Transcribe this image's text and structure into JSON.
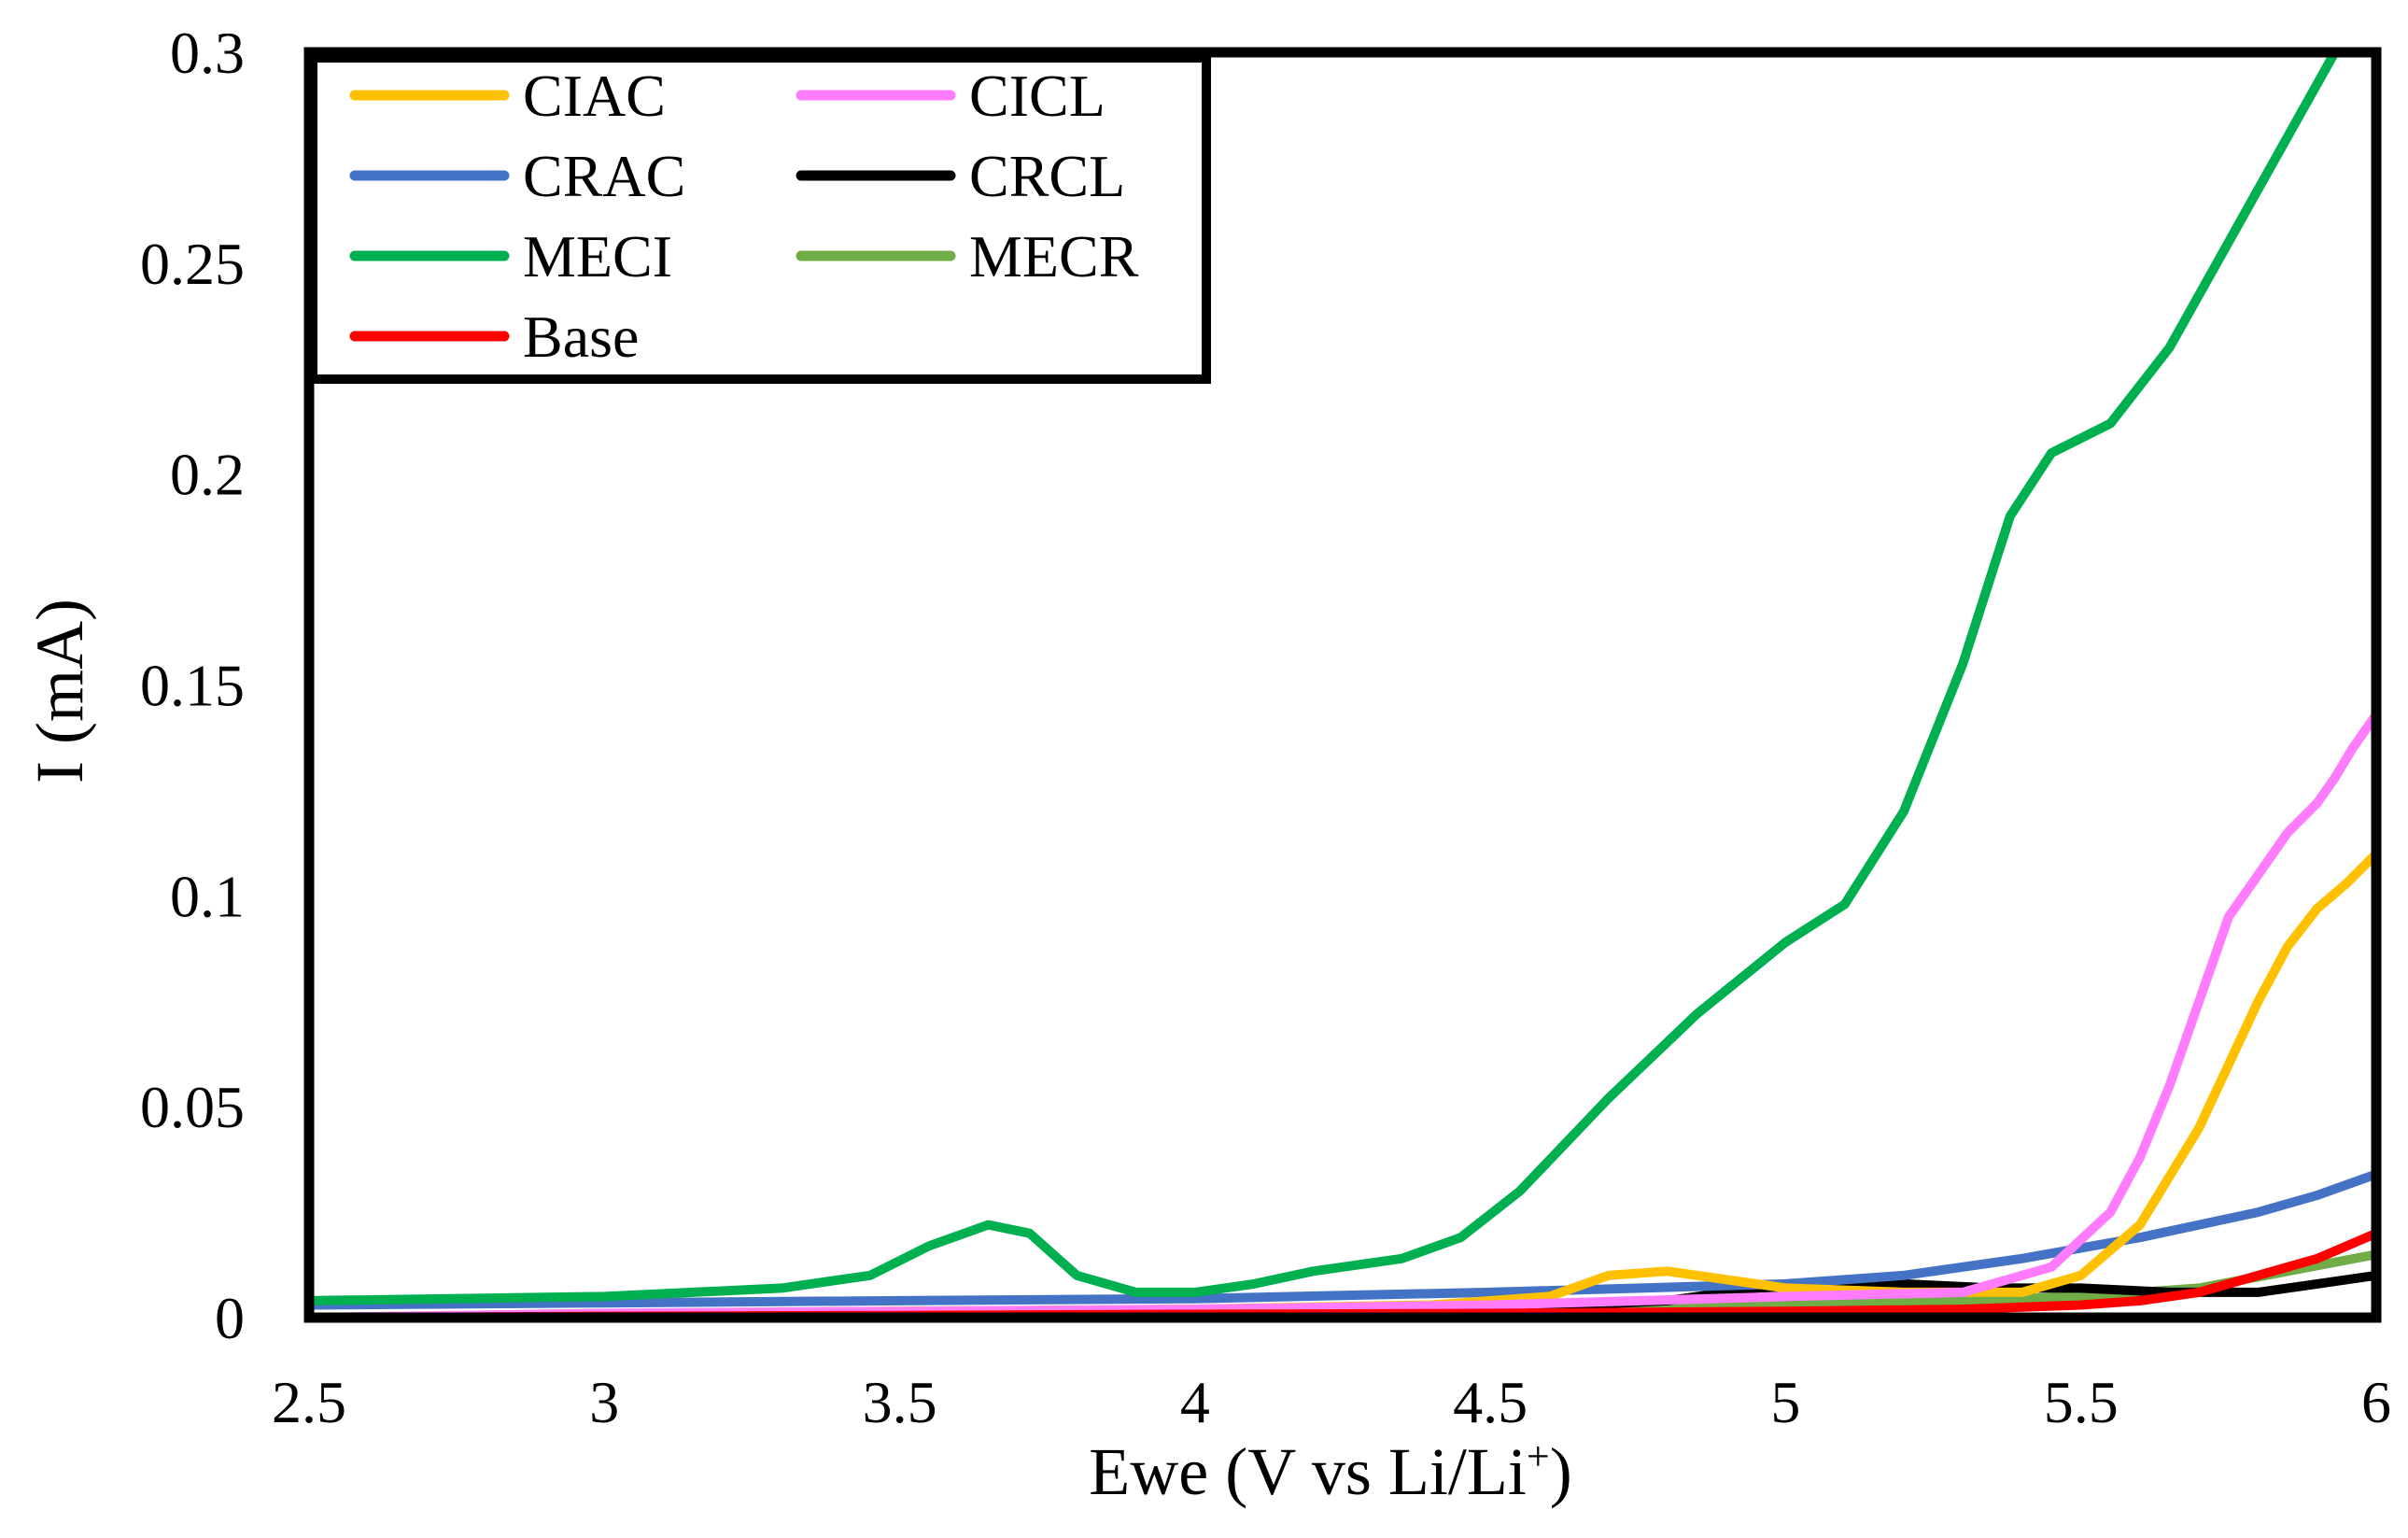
{
  "chart_data": {
    "type": "line",
    "title": "",
    "xlabel": "Ewe (V vs Li/Li",
    "xlabel_sup": "+",
    "xlabel_close": ")",
    "ylabel": "I (mA)",
    "xlim": [
      2.5,
      6
    ],
    "ylim": [
      0,
      0.3
    ],
    "x_ticks": [
      2.5,
      3,
      3.5,
      4,
      4.5,
      5,
      5.5,
      6
    ],
    "x_tick_labels": [
      "2.5",
      "3",
      "3.5",
      "4",
      "4.5",
      "5",
      "5.5",
      "6"
    ],
    "y_ticks": [
      0,
      0.05,
      0.1,
      0.15,
      0.2,
      0.25,
      0.3
    ],
    "y_tick_labels": [
      "0",
      "0.05",
      "0.1",
      "0.15",
      "0.2",
      "0.25",
      "0.3"
    ],
    "grid": false,
    "legend_position": "top-left",
    "series": [
      {
        "name": "CIAC",
        "color": "#FFC000",
        "x": [
          2.5,
          3.0,
          3.5,
          4.0,
          4.4,
          4.6,
          4.7,
          4.8,
          4.9,
          5.0,
          5.2,
          5.4,
          5.5,
          5.6,
          5.7,
          5.8,
          5.85,
          5.9,
          5.95,
          6.0
        ],
        "y": [
          0.0,
          0.001,
          0.0015,
          0.002,
          0.003,
          0.005,
          0.01,
          0.011,
          0.009,
          0.007,
          0.006,
          0.006,
          0.01,
          0.022,
          0.045,
          0.075,
          0.088,
          0.097,
          0.103,
          0.11
        ]
      },
      {
        "name": "CICL",
        "color": "#FF7CFF",
        "x": [
          2.5,
          3.0,
          3.5,
          4.0,
          4.5,
          5.0,
          5.3,
          5.45,
          5.55,
          5.6,
          5.65,
          5.7,
          5.75,
          5.8,
          5.85,
          5.9,
          5.93,
          5.96,
          6.0
        ],
        "y": [
          0.0,
          0.001,
          0.0015,
          0.002,
          0.003,
          0.005,
          0.006,
          0.012,
          0.025,
          0.038,
          0.055,
          0.075,
          0.095,
          0.105,
          0.115,
          0.122,
          0.128,
          0.135,
          0.143
        ]
      },
      {
        "name": "CRAC",
        "color": "#4472C4",
        "x": [
          2.5,
          3.0,
          3.5,
          4.0,
          4.5,
          5.0,
          5.2,
          5.4,
          5.6,
          5.8,
          5.9,
          6.0
        ],
        "y": [
          0.003,
          0.0035,
          0.004,
          0.0045,
          0.006,
          0.008,
          0.01,
          0.014,
          0.019,
          0.025,
          0.029,
          0.034
        ]
      },
      {
        "name": "CRCL",
        "color": "#000000",
        "x": [
          2.5,
          3.0,
          3.5,
          4.0,
          4.5,
          4.8,
          4.95,
          5.1,
          5.2,
          5.35,
          5.5,
          5.65,
          5.8,
          5.9,
          6.0
        ],
        "y": [
          0.0,
          0.0005,
          0.001,
          0.0015,
          0.002,
          0.004,
          0.007,
          0.008,
          0.008,
          0.007,
          0.007,
          0.006,
          0.006,
          0.008,
          0.01
        ]
      },
      {
        "name": "MECI",
        "color": "#00B050",
        "x": [
          2.5,
          3.0,
          3.3,
          3.45,
          3.55,
          3.65,
          3.72,
          3.8,
          3.9,
          4.0,
          4.1,
          4.2,
          4.35,
          4.45,
          4.55,
          4.7,
          4.85,
          5.0,
          5.1,
          5.2,
          5.3,
          5.38,
          5.45,
          5.55,
          5.65,
          5.75,
          5.85,
          5.93
        ],
        "y": [
          0.004,
          0.005,
          0.007,
          0.01,
          0.017,
          0.022,
          0.02,
          0.01,
          0.006,
          0.006,
          0.008,
          0.011,
          0.014,
          0.019,
          0.03,
          0.052,
          0.072,
          0.089,
          0.098,
          0.12,
          0.155,
          0.19,
          0.205,
          0.212,
          0.23,
          0.255,
          0.28,
          0.3
        ]
      },
      {
        "name": "MECR",
        "color": "#70AD47",
        "x": [
          2.5,
          3.0,
          3.5,
          4.0,
          4.5,
          5.0,
          5.3,
          5.5,
          5.7,
          5.85,
          6.0
        ],
        "y": [
          0.0,
          0.0005,
          0.001,
          0.0015,
          0.002,
          0.003,
          0.004,
          0.005,
          0.007,
          0.011,
          0.015
        ]
      },
      {
        "name": "Base",
        "color": "#FF0000",
        "x": [
          2.63,
          3.0,
          3.5,
          4.0,
          4.5,
          5.0,
          5.3,
          5.5,
          5.6,
          5.7,
          5.8,
          5.9,
          6.0
        ],
        "y": [
          0.0,
          0.0003,
          0.0005,
          0.0008,
          0.001,
          0.0015,
          0.002,
          0.003,
          0.004,
          0.006,
          0.01,
          0.014,
          0.02
        ]
      }
    ],
    "legend": {
      "columns": [
        [
          "CIAC",
          "CRAC",
          "MECI",
          "Base"
        ],
        [
          "CICL",
          "CRCL",
          "MECR"
        ]
      ]
    }
  }
}
